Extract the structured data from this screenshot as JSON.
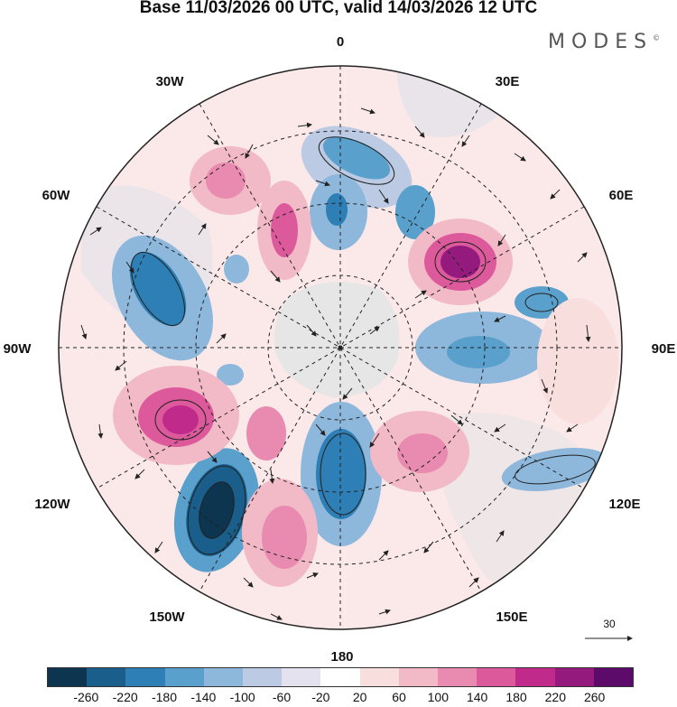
{
  "title": "Base 11/03/2026 00 UTC, valid 14/03/2026 12 UTC",
  "logo": "MODES",
  "logo_mark": "©",
  "longitude_labels": {
    "top": "0",
    "top_left": "30W",
    "top_right": "30E",
    "upper_left": "60W",
    "upper_right": "60E",
    "left": "90W",
    "right": "90E",
    "lower_left": "120W",
    "lower_right": "120E",
    "bottom_left": "150W",
    "bottom_right": "150E",
    "bottom": "180"
  },
  "reference_vector": "30",
  "colorbar": {
    "colors": [
      "#0d3550",
      "#1a5f8c",
      "#2e7fb5",
      "#5aa0cc",
      "#8db8dc",
      "#bccbe3",
      "#e4e2ef",
      "#ffffff",
      "#f9dede",
      "#f2b9c6",
      "#e98ab0",
      "#dc5a9c",
      "#c02a8a",
      "#941a7e",
      "#5c0b6a"
    ],
    "labels": [
      "-260",
      "-220",
      "-180",
      "-140",
      "-100",
      "-60",
      "-20",
      "20",
      "60",
      "100",
      "140",
      "180",
      "220",
      "260"
    ]
  }
}
